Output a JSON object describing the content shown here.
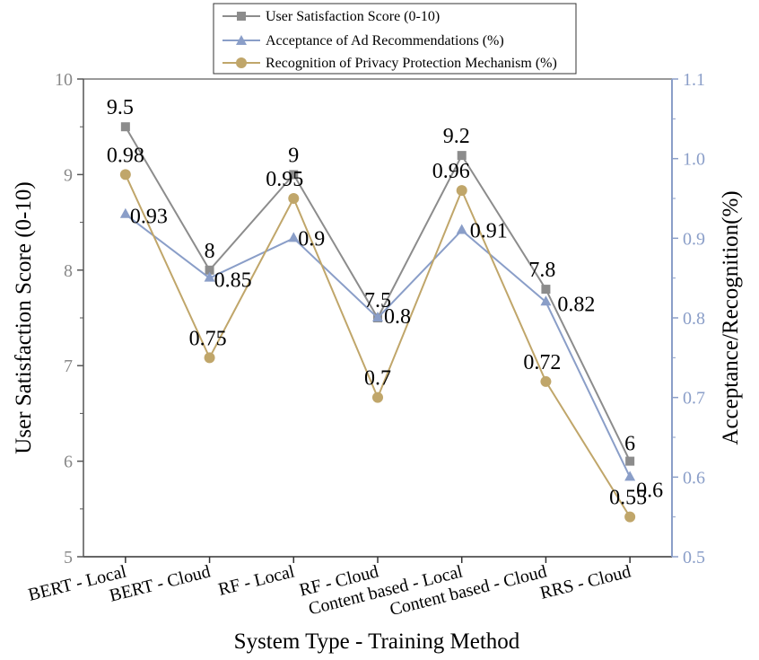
{
  "chart_data": {
    "type": "line",
    "categories": [
      "BERT - Local",
      "BERT - Cloud",
      "RF - Local",
      "RF - Cloud",
      "Content based - Local",
      "Content based - Cloud",
      "RRS - Cloud"
    ],
    "xlabel": "System Type - Training Method",
    "ylabel_left": "User Satisfaction Score (0-10)",
    "ylabel_right": "Acceptance/Recognition(%)",
    "ylim_left": [
      5,
      10
    ],
    "ylim_right": [
      0.5,
      1.1
    ],
    "yticks_left": [
      "5",
      "6",
      "7",
      "8",
      "9",
      "10"
    ],
    "yticks_right": [
      "0.5",
      "0.6",
      "0.7",
      "0.8",
      "0.9",
      "1.0",
      "1.1"
    ],
    "grid": false,
    "legend_position": "top-center",
    "series": [
      {
        "name": "User Satisfaction Score (0-10)",
        "axis": "left",
        "marker": "square",
        "color": "#8c8c8c",
        "values": [
          9.5,
          8,
          9,
          7.5,
          9.2,
          7.8,
          6
        ],
        "labels": [
          "9.5",
          "8",
          "9",
          "7.5",
          "9.2",
          "7.8",
          "6"
        ]
      },
      {
        "name": "Acceptance of Ad Recommendations (%)",
        "axis": "right",
        "marker": "triangle",
        "color": "#8a9ec8",
        "values": [
          0.93,
          0.85,
          0.9,
          0.8,
          0.91,
          0.82,
          0.6
        ],
        "labels": [
          "0.93",
          "0.85",
          "0.9",
          "0.8",
          "0.91",
          "0.82",
          "0.6"
        ]
      },
      {
        "name": "Recognition of Privacy Protection Mechanism (%)",
        "axis": "right",
        "marker": "circle",
        "color": "#c0a66a",
        "values": [
          0.98,
          0.75,
          0.95,
          0.7,
          0.96,
          0.72,
          0.55
        ],
        "labels": [
          "0.98",
          "0.75",
          "0.95",
          "0.7",
          "0.96",
          "0.72",
          "0.55"
        ]
      }
    ]
  }
}
